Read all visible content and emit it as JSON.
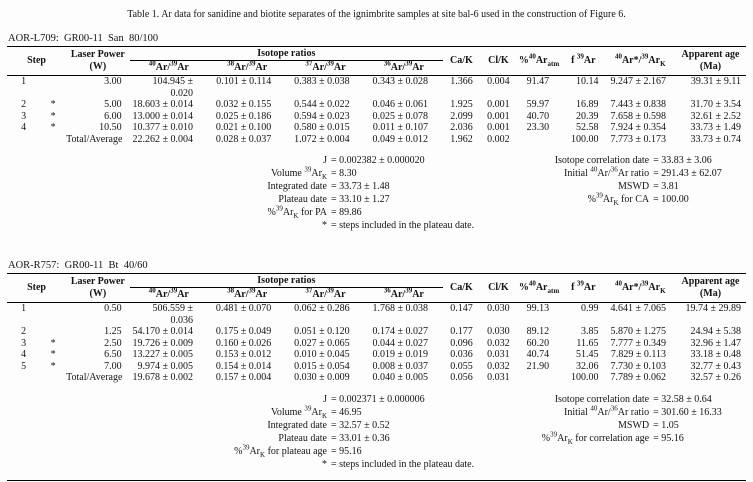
{
  "title": "Table 1. Ar data for sanidine and biotite separates of the ignimbrite samples at site bal-6 used in the construction of Figure 6.",
  "columns": {
    "step": "Step",
    "laser_power_line1": "Laser Power",
    "laser_power_line2": "(W)",
    "isotope_group": "Isotope ratios",
    "iso": [
      "^{40}Ar/^{39}Ar",
      "^{38}Ar/^{39}Ar",
      "^{37}Ar/^{39}Ar",
      "^{36}Ar/^{39}Ar"
    ],
    "ca_k": "Ca/K",
    "cl_k": "Cl/K",
    "pct_atm": "%^{40}Ar_{atm}",
    "f39": "f ^{39}Ar",
    "rad": "^{40}Ar*/^{39}Ar_{K}",
    "age_line1": "Apparent age",
    "age_line2": "(Ma)"
  },
  "sections": [
    {
      "label": "AOR-L709:  GR00-11  San  80/100",
      "rows": [
        {
          "step": "1",
          "flag": "",
          "power": "3.00",
          "iso40": "104.945 ± 0.020",
          "iso38": "0.101 ± 0.114",
          "iso37": "0.383 ± 0.038",
          "iso36": "0.343 ± 0.028",
          "ca_k": "1.366",
          "cl_k": "0.004",
          "pct_atm": "91.47",
          "f39": "10.14",
          "rad": "9.247 ± 2.167",
          "age": "39.31 ± 9.11"
        },
        {
          "step": "2",
          "flag": "*",
          "power": "5.00",
          "iso40": "18.603 ± 0.014",
          "iso38": "0.032 ± 0.155",
          "iso37": "0.544 ± 0.022",
          "iso36": "0.046 ± 0.061",
          "ca_k": "1.925",
          "cl_k": "0.001",
          "pct_atm": "59.97",
          "f39": "16.89",
          "rad": "7.443 ± 0.838",
          "age": "31.70 ± 3.54"
        },
        {
          "step": "3",
          "flag": "*",
          "power": "6.00",
          "iso40": "13.000 ± 0.014",
          "iso38": "0.025 ± 0.186",
          "iso37": "0.594 ± 0.023",
          "iso36": "0.025 ± 0.078",
          "ca_k": "2.099",
          "cl_k": "0.001",
          "pct_atm": "40.70",
          "f39": "20.39",
          "rad": "7.658 ± 0.598",
          "age": "32.61 ± 2.52"
        },
        {
          "step": "4",
          "flag": "*",
          "power": "10.50",
          "iso40": "10.377 ± 0.010",
          "iso38": "0.021 ± 0.100",
          "iso37": "0.580 ± 0.015",
          "iso36": "0.011 ± 0.107",
          "ca_k": "2.036",
          "cl_k": "0.001",
          "pct_atm": "23.30",
          "f39": "52.58",
          "rad": "7.924 ± 0.354",
          "age": "33.73 ± 1.49"
        }
      ],
      "total": {
        "step": "",
        "flag": "",
        "power": "Total/Average",
        "iso40": "22.262 ± 0.004",
        "iso38": "0.028 ± 0.037",
        "iso37": "1.072 ± 0.004",
        "iso36": "0.049 ± 0.012",
        "ca_k": "1.962",
        "cl_k": "0.002",
        "pct_atm": "",
        "f39": "100.00",
        "rad": "7.773 ± 0.173",
        "age": "33.73 ± 0.74"
      },
      "summary_left": [
        {
          "label": "J",
          "value": "0.002382 ± 0.000020"
        },
        {
          "label": "Volume ^{39}Ar_{K}",
          "value": "8.30"
        },
        {
          "label": "Integrated date",
          "value": "33.73 ± 1.48"
        },
        {
          "label": "Plateau date",
          "value": "33.10 ± 1.27"
        },
        {
          "label": "%^{39}Ar_{K} for PA",
          "value": "89.86"
        },
        {
          "label": "*",
          "value": "steps included in the plateau date."
        }
      ],
      "summary_right": [
        {
          "label": "Isotope correlation date",
          "value": "33.83 ± 3.06"
        },
        {
          "label": "Initial ^{40}Ar/^{36}Ar ratio",
          "value": "291.43 ± 62.07"
        },
        {
          "label": "MSWD",
          "value": "3.81"
        },
        {
          "label": "%^{39}Ar_{K} for CA",
          "value": "100.00"
        }
      ]
    },
    {
      "label": "AOR-R757:  GR00-11  Bt  40/60",
      "rows": [
        {
          "step": "1",
          "flag": "",
          "power": "0.50",
          "iso40": "506.559 ± 0.036",
          "iso38": "0.481 ± 0.070",
          "iso37": "0.062 ± 0.286",
          "iso36": "1.768 ± 0.038",
          "ca_k": "0.147",
          "cl_k": "0.030",
          "pct_atm": "99.13",
          "f39": "0.99",
          "rad": "4.641 ± 7.065",
          "age": "19.74 ± 29.89"
        },
        {
          "step": "2",
          "flag": "",
          "power": "1.25",
          "iso40": "54.170 ± 0.014",
          "iso38": "0.175 ± 0.049",
          "iso37": "0.051 ± 0.120",
          "iso36": "0.174 ± 0.027",
          "ca_k": "0.177",
          "cl_k": "0.030",
          "pct_atm": "89.12",
          "f39": "3.85",
          "rad": "5.870 ± 1.275",
          "age": "24.94 ± 5.38"
        },
        {
          "step": "3",
          "flag": "*",
          "power": "2.50",
          "iso40": "19.726 ± 0.009",
          "iso38": "0.160 ± 0.026",
          "iso37": "0.027 ± 0.065",
          "iso36": "0.044 ± 0.027",
          "ca_k": "0.096",
          "cl_k": "0.032",
          "pct_atm": "60.20",
          "f39": "11.65",
          "rad": "7.777 ± 0.349",
          "age": "32.96 ± 1.47"
        },
        {
          "step": "4",
          "flag": "*",
          "power": "6.50",
          "iso40": "13.227 ± 0.005",
          "iso38": "0.153 ± 0.012",
          "iso37": "0.010 ± 0.045",
          "iso36": "0.019 ± 0.019",
          "ca_k": "0.036",
          "cl_k": "0.031",
          "pct_atm": "40.74",
          "f39": "51.45",
          "rad": "7.829 ± 0.113",
          "age": "33.18 ± 0.48"
        },
        {
          "step": "5",
          "flag": "*",
          "power": "7.00",
          "iso40": "9.974 ± 0.005",
          "iso38": "0.154 ± 0.014",
          "iso37": "0.015 ± 0.054",
          "iso36": "0.008 ± 0.037",
          "ca_k": "0.055",
          "cl_k": "0.032",
          "pct_atm": "21.90",
          "f39": "32.06",
          "rad": "7.730 ± 0.103",
          "age": "32.77 ± 0.43"
        }
      ],
      "total": {
        "step": "",
        "flag": "",
        "power": "Total/Average",
        "iso40": "19.678 ± 0.002",
        "iso38": "0.157 ± 0.004",
        "iso37": "0.030 ± 0.009",
        "iso36": "0.040 ± 0.005",
        "ca_k": "0.056",
        "cl_k": "0.031",
        "pct_atm": "",
        "f39": "100.00",
        "rad": "7.789 ± 0.062",
        "age": "32.57 ± 0.26"
      },
      "summary_left": [
        {
          "label": "J",
          "value": "0.002371 ± 0.000006"
        },
        {
          "label": "Volume ^{39}Ar_{K}",
          "value": "46.95"
        },
        {
          "label": "Integrated date",
          "value": "32.57 ± 0.52"
        },
        {
          "label": "Plateau date",
          "value": "33.01 ± 0.36"
        },
        {
          "label": "%^{39}Ar_{K} for plateau age",
          "value": "95.16"
        },
        {
          "label": "*",
          "value": "steps included in the plateau date."
        }
      ],
      "summary_right": [
        {
          "label": "Isotope correlation date",
          "value": "32.58 ± 0.64"
        },
        {
          "label": "Initial ^{40}Ar/^{36}Ar ratio",
          "value": "301.60 ± 16.33"
        },
        {
          "label": "MSWD",
          "value": "1.05"
        },
        {
          "label": "%^{39}Ar_{K} for correlation age",
          "value": "95.16"
        }
      ]
    }
  ]
}
